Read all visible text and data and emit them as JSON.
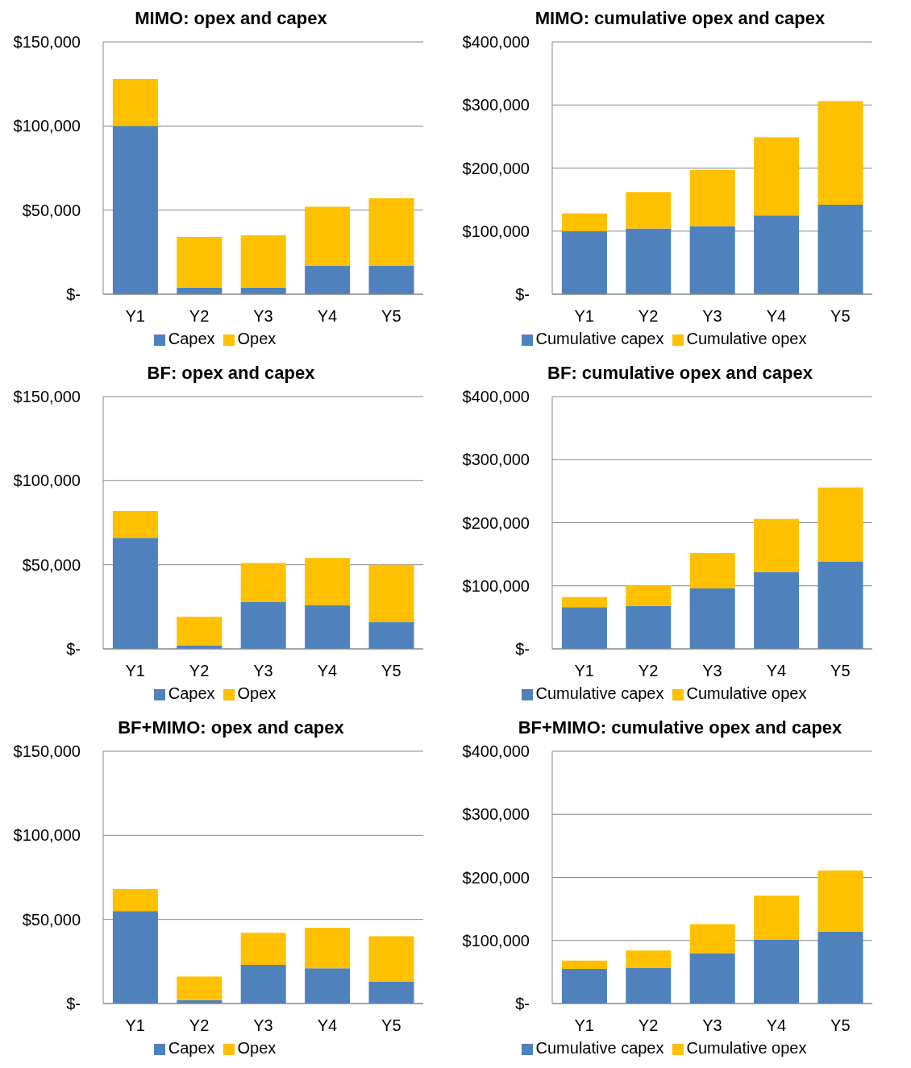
{
  "chart_data": [
    {
      "type": "bar",
      "title": "MIMO: opex and capex",
      "categories": [
        "Y1",
        "Y2",
        "Y3",
        "Y4",
        "Y5"
      ],
      "stacked": true,
      "series": [
        {
          "name": "Capex",
          "color": "#4f81bd",
          "values": [
            100000,
            4000,
            4000,
            17000,
            17000
          ]
        },
        {
          "name": "Opex",
          "color": "#ffc000",
          "values": [
            28000,
            30000,
            31000,
            35000,
            40000
          ]
        }
      ],
      "ylim": [
        0,
        150000
      ],
      "yticks": [
        {
          "value": 0,
          "label": "$-"
        },
        {
          "value": 50000,
          "label": "$50,000"
        },
        {
          "value": 100000,
          "label": "$100,000"
        },
        {
          "value": 150000,
          "label": "$150,000"
        }
      ],
      "grid": "y",
      "legend": "bottom"
    },
    {
      "type": "bar",
      "title": "MIMO: cumulative opex and capex",
      "categories": [
        "Y1",
        "Y2",
        "Y3",
        "Y4",
        "Y5"
      ],
      "stacked": true,
      "series": [
        {
          "name": "Cumulative capex",
          "color": "#4f81bd",
          "values": [
            100000,
            104000,
            108000,
            125000,
            142000
          ]
        },
        {
          "name": "Cumulative opex",
          "color": "#ffc000",
          "values": [
            28000,
            58000,
            89000,
            124000,
            164000
          ]
        }
      ],
      "ylim": [
        0,
        400000
      ],
      "yticks": [
        {
          "value": 0,
          "label": "$-"
        },
        {
          "value": 100000,
          "label": "$100,000"
        },
        {
          "value": 200000,
          "label": "$200,000"
        },
        {
          "value": 300000,
          "label": "$300,000"
        },
        {
          "value": 400000,
          "label": "$400,000"
        }
      ],
      "grid": "y",
      "legend": "bottom"
    },
    {
      "type": "bar",
      "title": "BF: opex and capex",
      "categories": [
        "Y1",
        "Y2",
        "Y3",
        "Y4",
        "Y5"
      ],
      "stacked": true,
      "series": [
        {
          "name": "Capex",
          "color": "#4f81bd",
          "values": [
            66000,
            2000,
            28000,
            26000,
            16000
          ]
        },
        {
          "name": "Opex",
          "color": "#ffc000",
          "values": [
            16000,
            17000,
            23000,
            28000,
            34000
          ]
        }
      ],
      "ylim": [
        0,
        150000
      ],
      "yticks": [
        {
          "value": 0,
          "label": "$-"
        },
        {
          "value": 50000,
          "label": "$50,000"
        },
        {
          "value": 100000,
          "label": "$100,000"
        },
        {
          "value": 150000,
          "label": "$150,000"
        }
      ],
      "grid": "y",
      "legend": "bottom"
    },
    {
      "type": "bar",
      "title": "BF: cumulative opex and capex",
      "categories": [
        "Y1",
        "Y2",
        "Y3",
        "Y4",
        "Y5"
      ],
      "stacked": true,
      "series": [
        {
          "name": "Cumulative capex",
          "color": "#4f81bd",
          "values": [
            66000,
            68000,
            96000,
            122000,
            138000
          ]
        },
        {
          "name": "Cumulative opex",
          "color": "#ffc000",
          "values": [
            16000,
            33000,
            56000,
            84000,
            118000
          ]
        }
      ],
      "ylim": [
        0,
        400000
      ],
      "yticks": [
        {
          "value": 0,
          "label": "$-"
        },
        {
          "value": 100000,
          "label": "$100,000"
        },
        {
          "value": 200000,
          "label": "$200,000"
        },
        {
          "value": 300000,
          "label": "$300,000"
        },
        {
          "value": 400000,
          "label": "$400,000"
        }
      ],
      "grid": "y",
      "legend": "bottom"
    },
    {
      "type": "bar",
      "title": "BF+MIMO: opex and capex",
      "categories": [
        "Y1",
        "Y2",
        "Y3",
        "Y4",
        "Y5"
      ],
      "stacked": true,
      "series": [
        {
          "name": "Capex",
          "color": "#4f81bd",
          "values": [
            55000,
            2000,
            23000,
            21000,
            13000
          ]
        },
        {
          "name": "Opex",
          "color": "#ffc000",
          "values": [
            13000,
            14000,
            19000,
            24000,
            27000
          ]
        }
      ],
      "ylim": [
        0,
        150000
      ],
      "yticks": [
        {
          "value": 0,
          "label": "$-"
        },
        {
          "value": 50000,
          "label": "$50,000"
        },
        {
          "value": 100000,
          "label": "$100,000"
        },
        {
          "value": 150000,
          "label": "$150,000"
        }
      ],
      "grid": "y",
      "legend": "bottom"
    },
    {
      "type": "bar",
      "title": "BF+MIMO: cumulative opex and capex",
      "categories": [
        "Y1",
        "Y2",
        "Y3",
        "Y4",
        "Y5"
      ],
      "stacked": true,
      "series": [
        {
          "name": "Cumulative capex",
          "color": "#4f81bd",
          "values": [
            55000,
            57000,
            80000,
            101000,
            114000
          ]
        },
        {
          "name": "Cumulative opex",
          "color": "#ffc000",
          "values": [
            13000,
            27000,
            46000,
            70000,
            97000
          ]
        }
      ],
      "ylim": [
        0,
        400000
      ],
      "yticks": [
        {
          "value": 0,
          "label": "$-"
        },
        {
          "value": 100000,
          "label": "$100,000"
        },
        {
          "value": 200000,
          "label": "$200,000"
        },
        {
          "value": 300000,
          "label": "$300,000"
        },
        {
          "value": 400000,
          "label": "$400,000"
        }
      ],
      "grid": "y",
      "legend": "bottom"
    }
  ]
}
